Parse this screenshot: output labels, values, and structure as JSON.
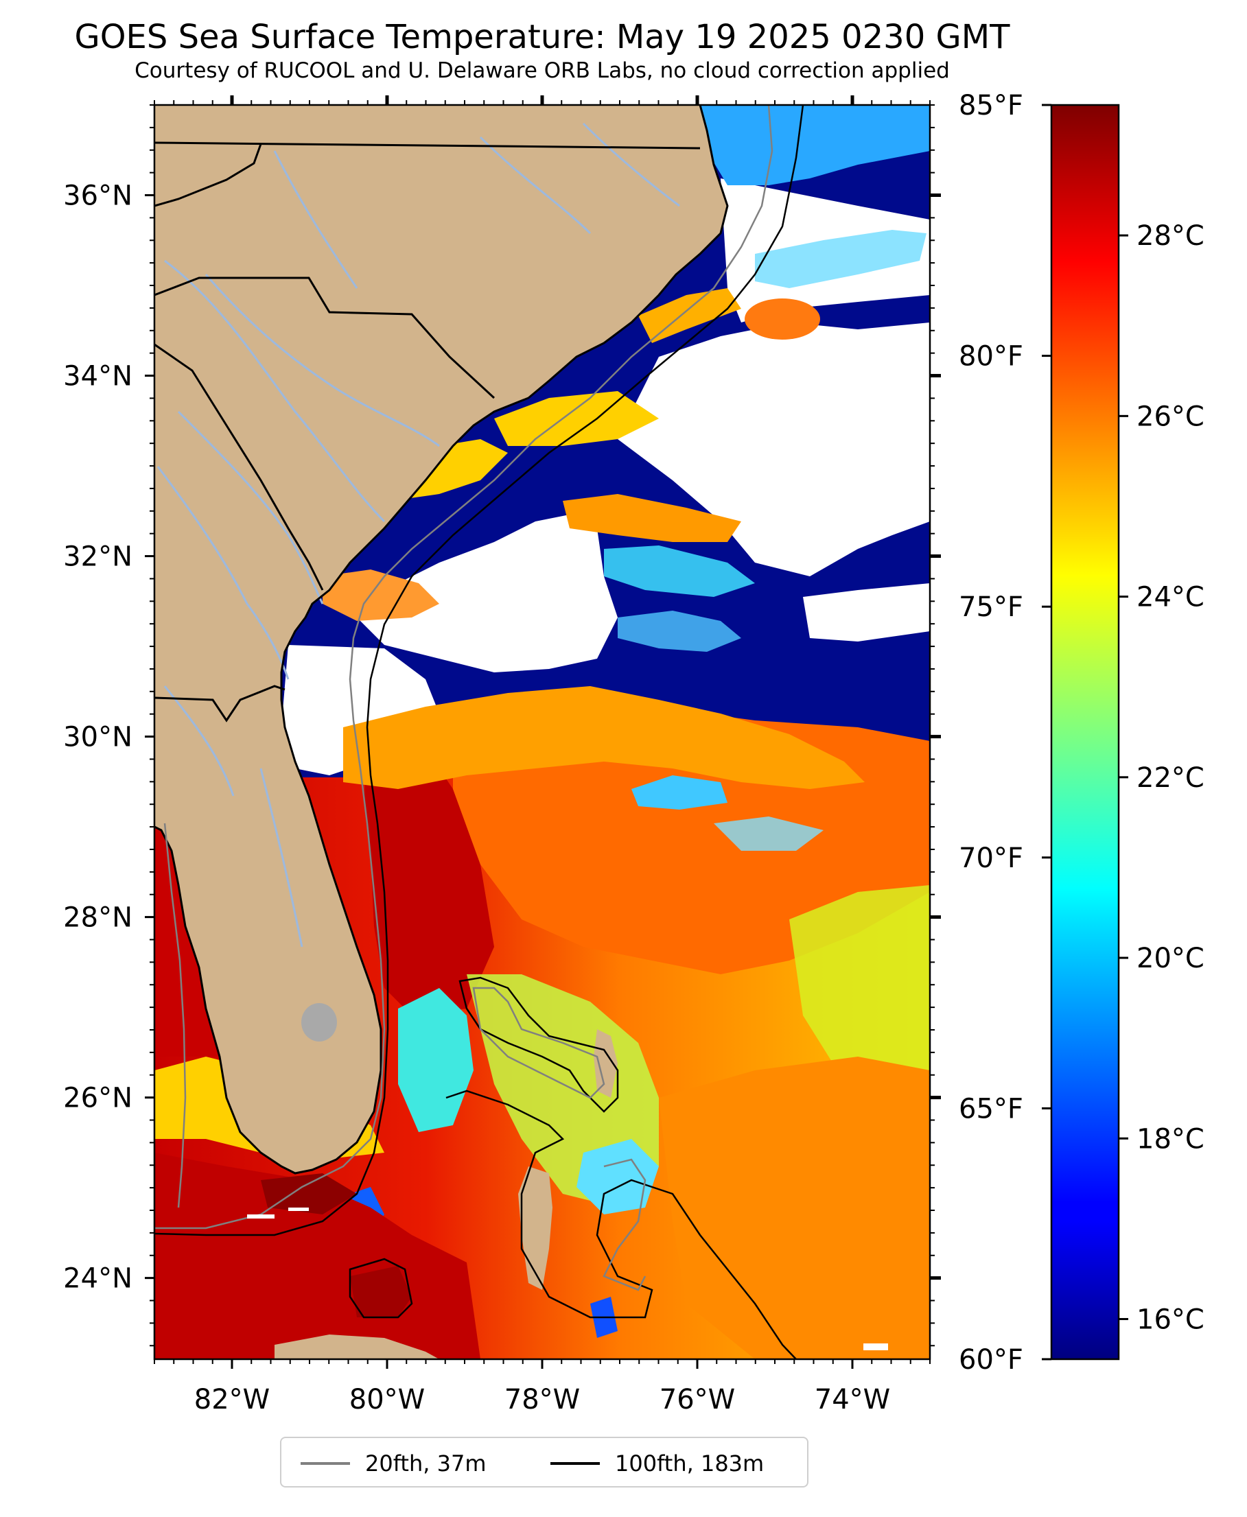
{
  "title": "GOES Sea Surface Temperature: May 19 2025 0230 GMT",
  "subtitle": "Courtesy of RUCOOL and U. Delaware ORB Labs, no cloud correction applied",
  "map": {
    "lon_range": [
      -83,
      -73
    ],
    "lat_range": [
      23.1,
      37.0
    ],
    "lon_ticks": [
      {
        "value": -82,
        "label": "82°W"
      },
      {
        "value": -80,
        "label": "80°W"
      },
      {
        "value": -78,
        "label": "78°W"
      },
      {
        "value": -76,
        "label": "76°W"
      },
      {
        "value": -74,
        "label": "74°W"
      }
    ],
    "lat_ticks": [
      {
        "value": 24,
        "label": "24°N"
      },
      {
        "value": 26,
        "label": "26°N"
      },
      {
        "value": 28,
        "label": "28°N"
      },
      {
        "value": 30,
        "label": "30°N"
      },
      {
        "value": 32,
        "label": "32°N"
      },
      {
        "value": 34,
        "label": "34°N"
      },
      {
        "value": 36,
        "label": "36°N"
      }
    ],
    "land_color": "#d2b48c",
    "cloud_color": "#ffffff"
  },
  "colorbar": {
    "colormap": "jet",
    "celsius_ticks": [
      {
        "value": 16,
        "label": "16°C"
      },
      {
        "value": 18,
        "label": "18°C"
      },
      {
        "value": 20,
        "label": "20°C"
      },
      {
        "value": 22,
        "label": "22°C"
      },
      {
        "value": 24,
        "label": "24°C"
      },
      {
        "value": 26,
        "label": "26°C"
      },
      {
        "value": 28,
        "label": "28°C"
      }
    ],
    "fahrenheit_ticks": [
      {
        "value": 60,
        "label": "60°F"
      },
      {
        "value": 65,
        "label": "65°F"
      },
      {
        "value": 70,
        "label": "70°F"
      },
      {
        "value": 75,
        "label": "75°F"
      },
      {
        "value": 80,
        "label": "80°F"
      },
      {
        "value": 85,
        "label": "85°F"
      }
    ],
    "range_f": [
      60,
      85
    ]
  },
  "legend": {
    "items": [
      {
        "label": "20fth, 37m",
        "color": "#808080"
      },
      {
        "label": "100fth, 183m",
        "color": "#000000"
      }
    ]
  }
}
